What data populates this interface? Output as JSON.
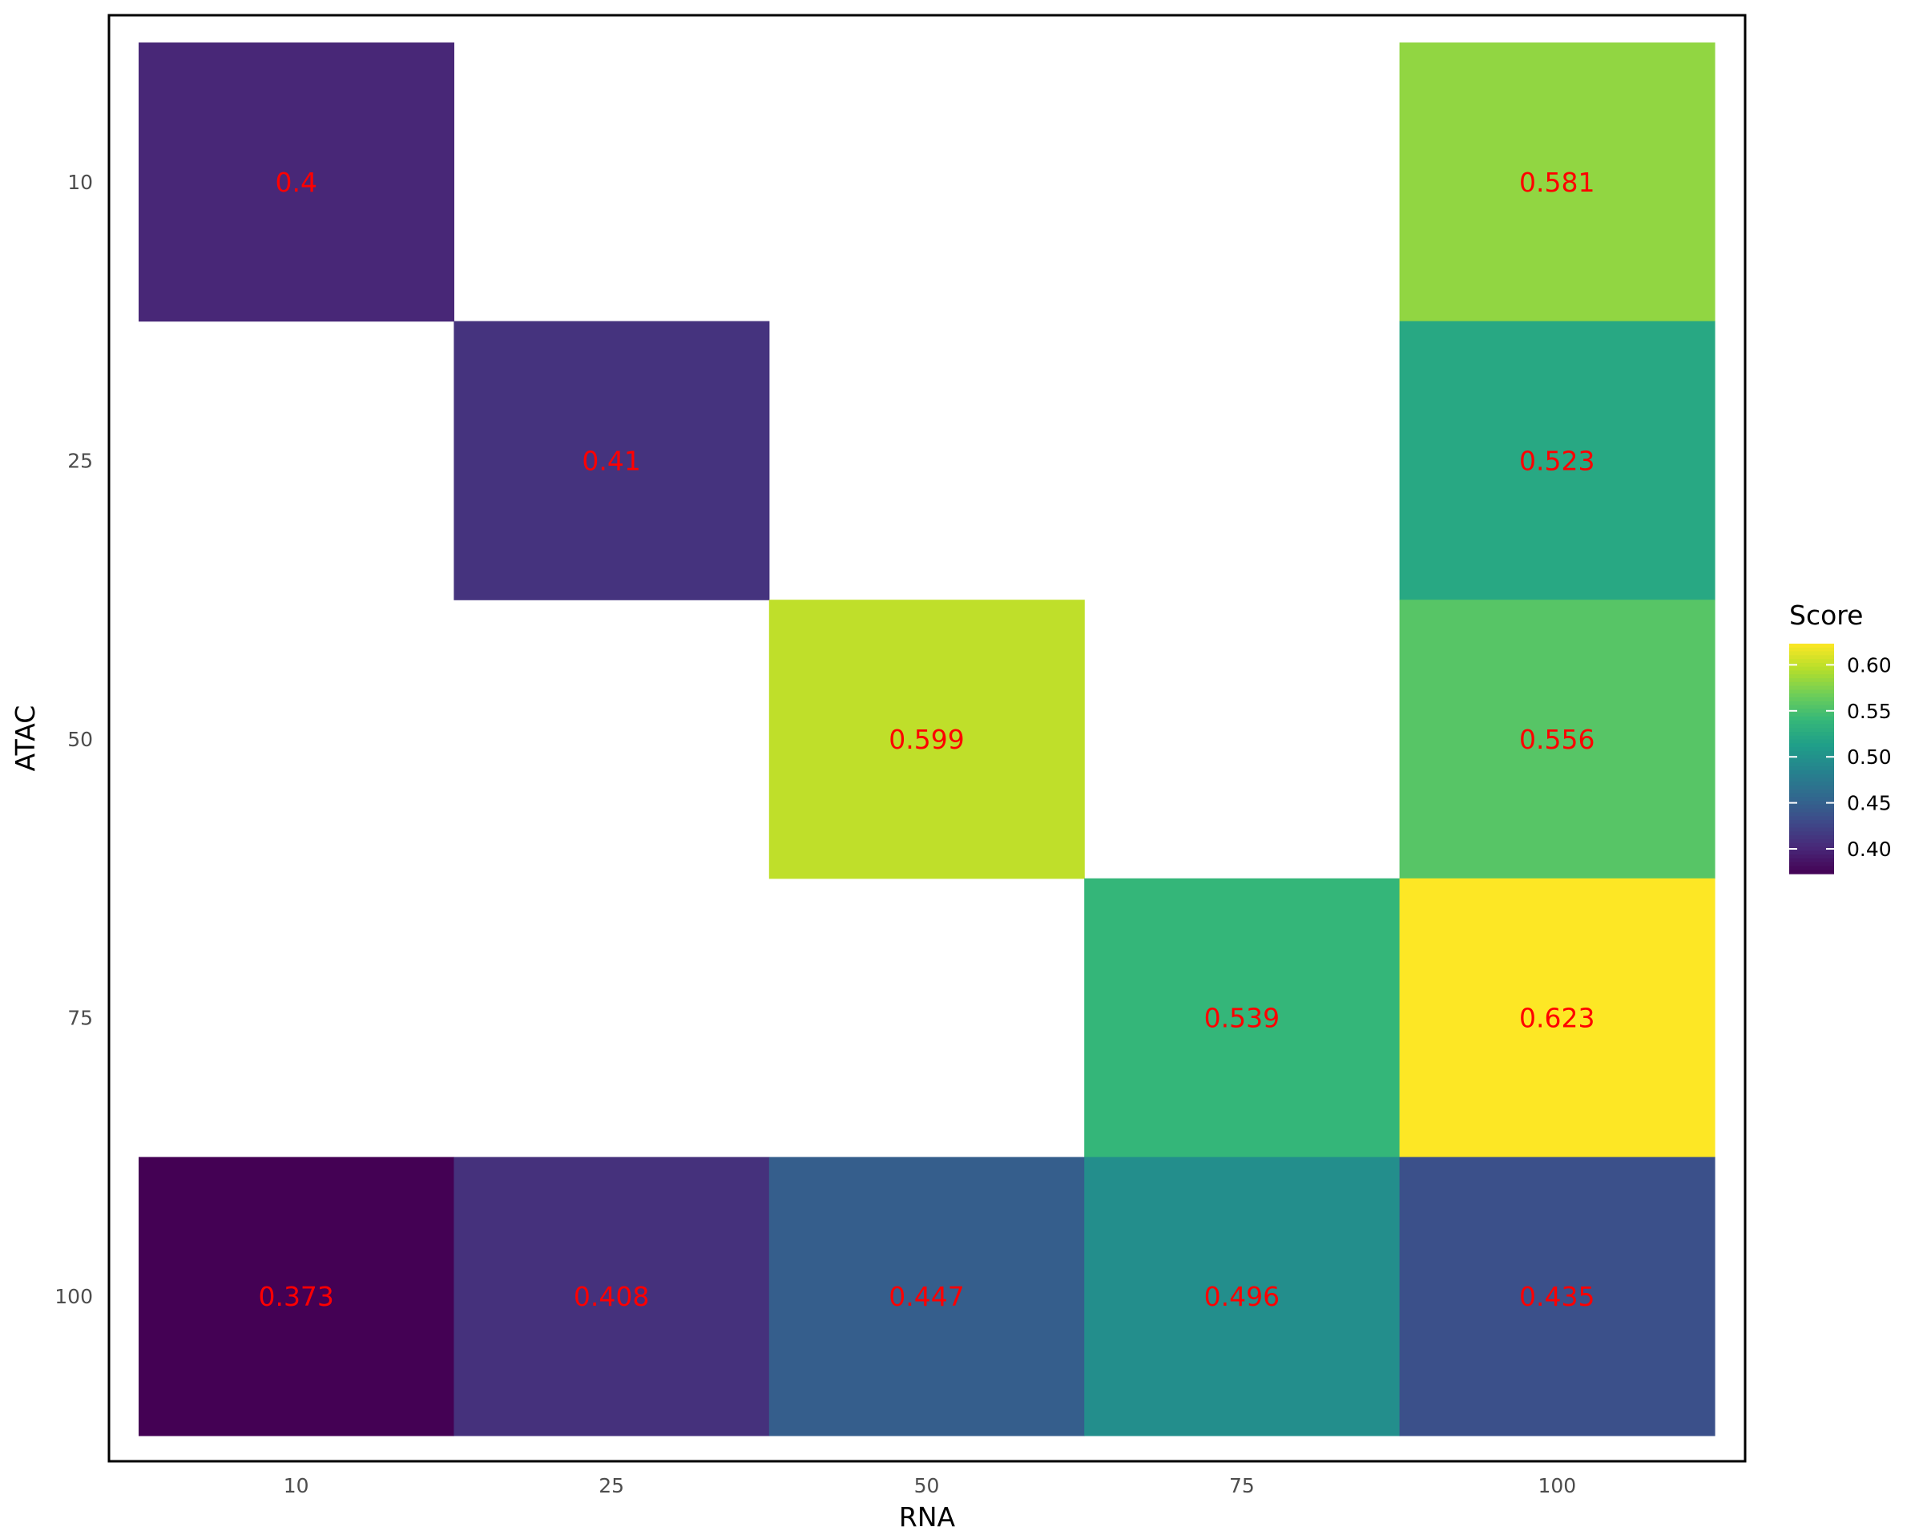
{
  "chart_data": {
    "type": "heatmap",
    "title": "",
    "xlabel": "RNA",
    "ylabel": "ATAC",
    "x_categories": [
      "10",
      "25",
      "50",
      "75",
      "100"
    ],
    "y_categories": [
      "10",
      "25",
      "50",
      "75",
      "100"
    ],
    "cells": [
      {
        "x": "10",
        "y": "10",
        "value": 0.4,
        "label": "0.4"
      },
      {
        "x": "100",
        "y": "10",
        "value": 0.581,
        "label": "0.581"
      },
      {
        "x": "25",
        "y": "25",
        "value": 0.41,
        "label": "0.41"
      },
      {
        "x": "100",
        "y": "25",
        "value": 0.523,
        "label": "0.523"
      },
      {
        "x": "50",
        "y": "50",
        "value": 0.599,
        "label": "0.599"
      },
      {
        "x": "100",
        "y": "50",
        "value": 0.556,
        "label": "0.556"
      },
      {
        "x": "75",
        "y": "75",
        "value": 0.539,
        "label": "0.539"
      },
      {
        "x": "100",
        "y": "75",
        "value": 0.623,
        "label": "0.623"
      },
      {
        "x": "10",
        "y": "100",
        "value": 0.373,
        "label": "0.373"
      },
      {
        "x": "25",
        "y": "100",
        "value": 0.408,
        "label": "0.408"
      },
      {
        "x": "50",
        "y": "100",
        "value": 0.447,
        "label": "0.447"
      },
      {
        "x": "75",
        "y": "100",
        "value": 0.496,
        "label": "0.496"
      },
      {
        "x": "100",
        "y": "100",
        "value": 0.435,
        "label": "0.435"
      }
    ],
    "legend": {
      "title": "Score",
      "min": 0.373,
      "max": 0.623,
      "ticks": [
        {
          "value": 0.4,
          "label": "0.40"
        },
        {
          "value": 0.45,
          "label": "0.45"
        },
        {
          "value": 0.5,
          "label": "0.50"
        },
        {
          "value": 0.55,
          "label": "0.55"
        },
        {
          "value": 0.6,
          "label": "0.60"
        }
      ],
      "placement": "right",
      "colormap": "viridis"
    },
    "label_color": "#ff0000"
  }
}
